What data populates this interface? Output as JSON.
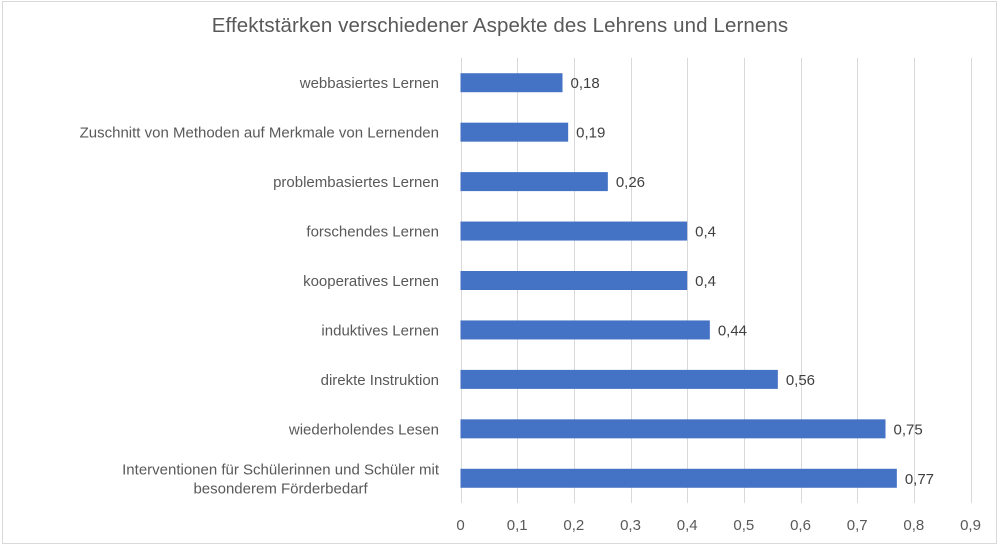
{
  "chart_data": {
    "type": "bar",
    "orientation": "horizontal",
    "title": "Effektstärken verschiedener Aspekte des Lehrens und Lernens",
    "xlabel": "",
    "ylabel": "",
    "categories": [
      [
        "webbasiertes Lernen"
      ],
      [
        "Zuschnitt von Methoden auf Merkmale von Lernenden"
      ],
      [
        "problembasiertes Lernen"
      ],
      [
        "forschendes Lernen"
      ],
      [
        "kooperatives Lernen"
      ],
      [
        "induktives Lernen"
      ],
      [
        "direkte Instruktion"
      ],
      [
        "wiederholendes Lesen"
      ],
      [
        "Interventionen für Schülerinnen und Schüler mit",
        "besonderem Förderbedarf"
      ]
    ],
    "values": [
      0.18,
      0.19,
      0.26,
      0.4,
      0.4,
      0.44,
      0.56,
      0.75,
      0.77
    ],
    "data_labels": [
      "0,18",
      "0,19",
      "0,26",
      "0,4",
      "0,4",
      "0,44",
      "0,56",
      "0,75",
      "0,77"
    ],
    "xlim": [
      0,
      0.9
    ],
    "xticks": [
      0,
      0.1,
      0.2,
      0.3,
      0.4,
      0.5,
      0.6,
      0.7,
      0.8,
      0.9
    ],
    "xtick_labels": [
      "0",
      "0,1",
      "0,2",
      "0,3",
      "0,4",
      "0,5",
      "0,6",
      "0,7",
      "0,8",
      "0,9"
    ],
    "grid": "vertical",
    "legend": "none",
    "bar_color": "#4472c4"
  }
}
